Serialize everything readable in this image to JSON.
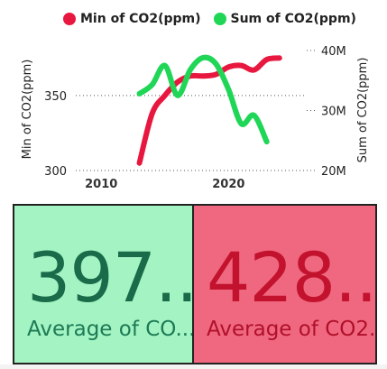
{
  "chart_data": {
    "type": "line",
    "title": "",
    "legend": {
      "placement": "top",
      "entries": [
        "Min of CO2(ppm)",
        "Sum of CO2(ppm)"
      ]
    },
    "xlabel": "",
    "x_ticks": [
      "2010",
      "2020"
    ],
    "xlim": [
      2008,
      2026
    ],
    "y_left": {
      "label": "Min of CO2(ppm)",
      "ticks": [
        "300",
        "350"
      ],
      "ylim": [
        300,
        380
      ]
    },
    "y_right": {
      "label": "Sum of CO2(ppm)",
      "ticks": [
        "20M",
        "30M",
        "40M"
      ],
      "ylim": [
        20,
        40
      ],
      "unit": "M"
    },
    "grid": true,
    "series": [
      {
        "name": "Min of CO2(ppm)",
        "color": "#e8173f",
        "axis": "left",
        "points": [
          [
            2013,
            305
          ],
          [
            2014,
            338
          ],
          [
            2015,
            350
          ],
          [
            2016,
            359
          ],
          [
            2017,
            363
          ],
          [
            2018,
            363
          ],
          [
            2019,
            364
          ],
          [
            2020,
            369
          ],
          [
            2021,
            370
          ],
          [
            2022,
            367
          ],
          [
            2023,
            374
          ],
          [
            2024,
            375
          ]
        ]
      },
      {
        "name": "Sum of CO2(ppm)",
        "color": "#1fd656",
        "axis": "right",
        "points": [
          [
            2013,
            32.8
          ],
          [
            2014,
            34.3
          ],
          [
            2015,
            37.5
          ],
          [
            2016,
            32.5
          ],
          [
            2017,
            36.8
          ],
          [
            2018,
            38.8
          ],
          [
            2019,
            37.8
          ],
          [
            2020,
            33.5
          ],
          [
            2021,
            27.8
          ],
          [
            2022,
            29.2
          ],
          [
            2023,
            24.8
          ]
        ]
      }
    ]
  },
  "cards": [
    {
      "value": "397...",
      "label": "Average of CO...",
      "color": "#a3f3c3"
    },
    {
      "value": "428...",
      "label": "Average of CO2...",
      "color": "#f0687f"
    }
  ]
}
